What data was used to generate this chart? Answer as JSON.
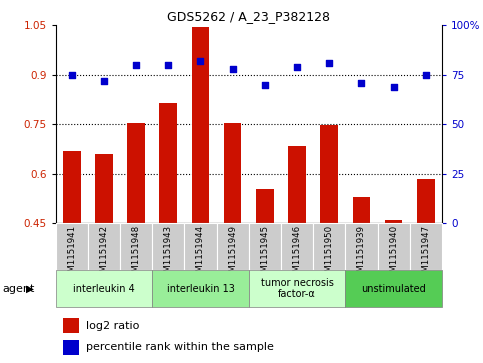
{
  "title": "GDS5262 / A_23_P382128",
  "samples": [
    "GSM1151941",
    "GSM1151942",
    "GSM1151948",
    "GSM1151943",
    "GSM1151944",
    "GSM1151949",
    "GSM1151945",
    "GSM1151946",
    "GSM1151950",
    "GSM1151939",
    "GSM1151940",
    "GSM1151947"
  ],
  "log2_ratio": [
    0.67,
    0.66,
    0.755,
    0.815,
    1.045,
    0.755,
    0.555,
    0.685,
    0.748,
    0.53,
    0.46,
    0.585
  ],
  "percentile": [
    75,
    72,
    80,
    80,
    82,
    78,
    70,
    79,
    81,
    71,
    69,
    75
  ],
  "ylim_left": [
    0.45,
    1.05
  ],
  "ylim_right": [
    0,
    100
  ],
  "yticks_left": [
    0.45,
    0.6,
    0.75,
    0.9,
    1.05
  ],
  "yticks_right": [
    0,
    25,
    50,
    75,
    100
  ],
  "ytick_labels_right": [
    "0",
    "25",
    "50",
    "75",
    "100%"
  ],
  "agents": [
    {
      "label": "interleukin 4",
      "start": 0,
      "end": 3,
      "color": "#ccffcc"
    },
    {
      "label": "interleukin 13",
      "start": 3,
      "end": 6,
      "color": "#99ee99"
    },
    {
      "label": "tumor necrosis\nfactor-α",
      "start": 6,
      "end": 9,
      "color": "#ccffcc"
    },
    {
      "label": "unstimulated",
      "start": 9,
      "end": 12,
      "color": "#55cc55"
    }
  ],
  "bar_color": "#cc1100",
  "dot_color": "#0000cc",
  "tick_label_color_left": "#cc2200",
  "tick_label_color_right": "#0000cc",
  "legend_bar_label": "log2 ratio",
  "legend_dot_label": "percentile rank within the sample",
  "agent_label": "agent",
  "xlabel_row_bg": "#cccccc",
  "bar_width": 0.55
}
